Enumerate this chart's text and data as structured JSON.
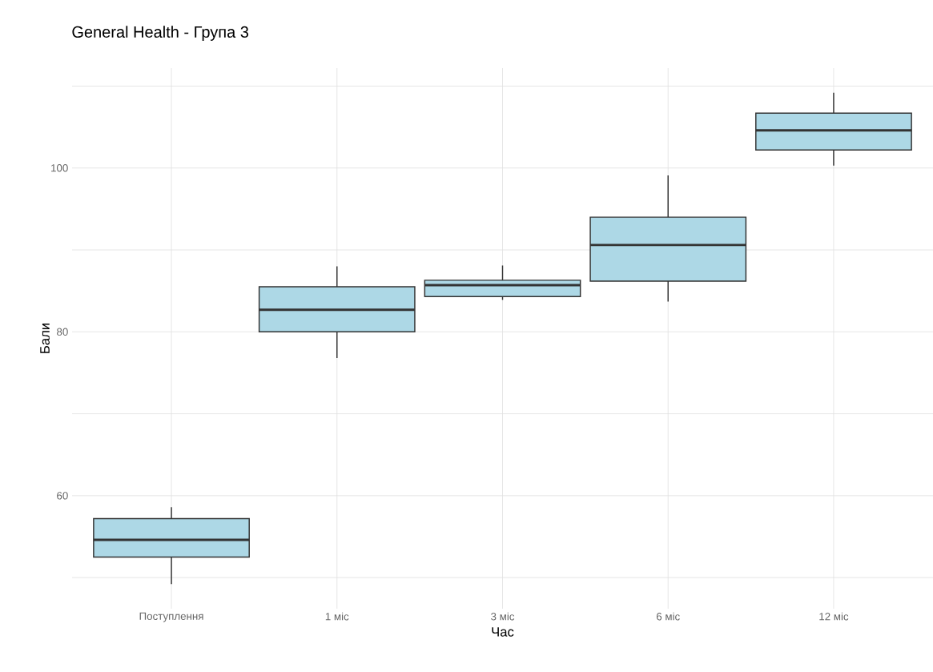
{
  "chart_data": {
    "type": "box",
    "title": "General Health - Група 3",
    "xlabel": "Час",
    "ylabel": "Бали",
    "categories": [
      "Поступлення",
      "1 міс",
      "3 міс",
      "6 міс",
      "12 міс"
    ],
    "boxes": [
      {
        "low": 49.2,
        "q1": 52.5,
        "median": 54.6,
        "q3": 57.2,
        "high": 58.6
      },
      {
        "low": 76.8,
        "q1": 80.0,
        "median": 82.7,
        "q3": 85.5,
        "high": 88.0
      },
      {
        "low": 83.9,
        "q1": 84.3,
        "median": 85.7,
        "q3": 86.3,
        "high": 88.1
      },
      {
        "low": 83.7,
        "q1": 86.2,
        "median": 90.6,
        "q3": 94.0,
        "high": 99.1
      },
      {
        "low": 100.3,
        "q1": 102.2,
        "median": 104.6,
        "q3": 106.7,
        "high": 109.2
      }
    ],
    "color": "#add8e6",
    "ylim": [
      46.2,
      112.2
    ],
    "yticks": [
      {
        "value": 50,
        "label": null
      },
      60,
      {
        "value": 70,
        "label": null
      },
      80,
      {
        "value": 90,
        "label": null
      },
      100,
      {
        "value": 110,
        "label": null
      }
    ],
    "grid": true
  }
}
